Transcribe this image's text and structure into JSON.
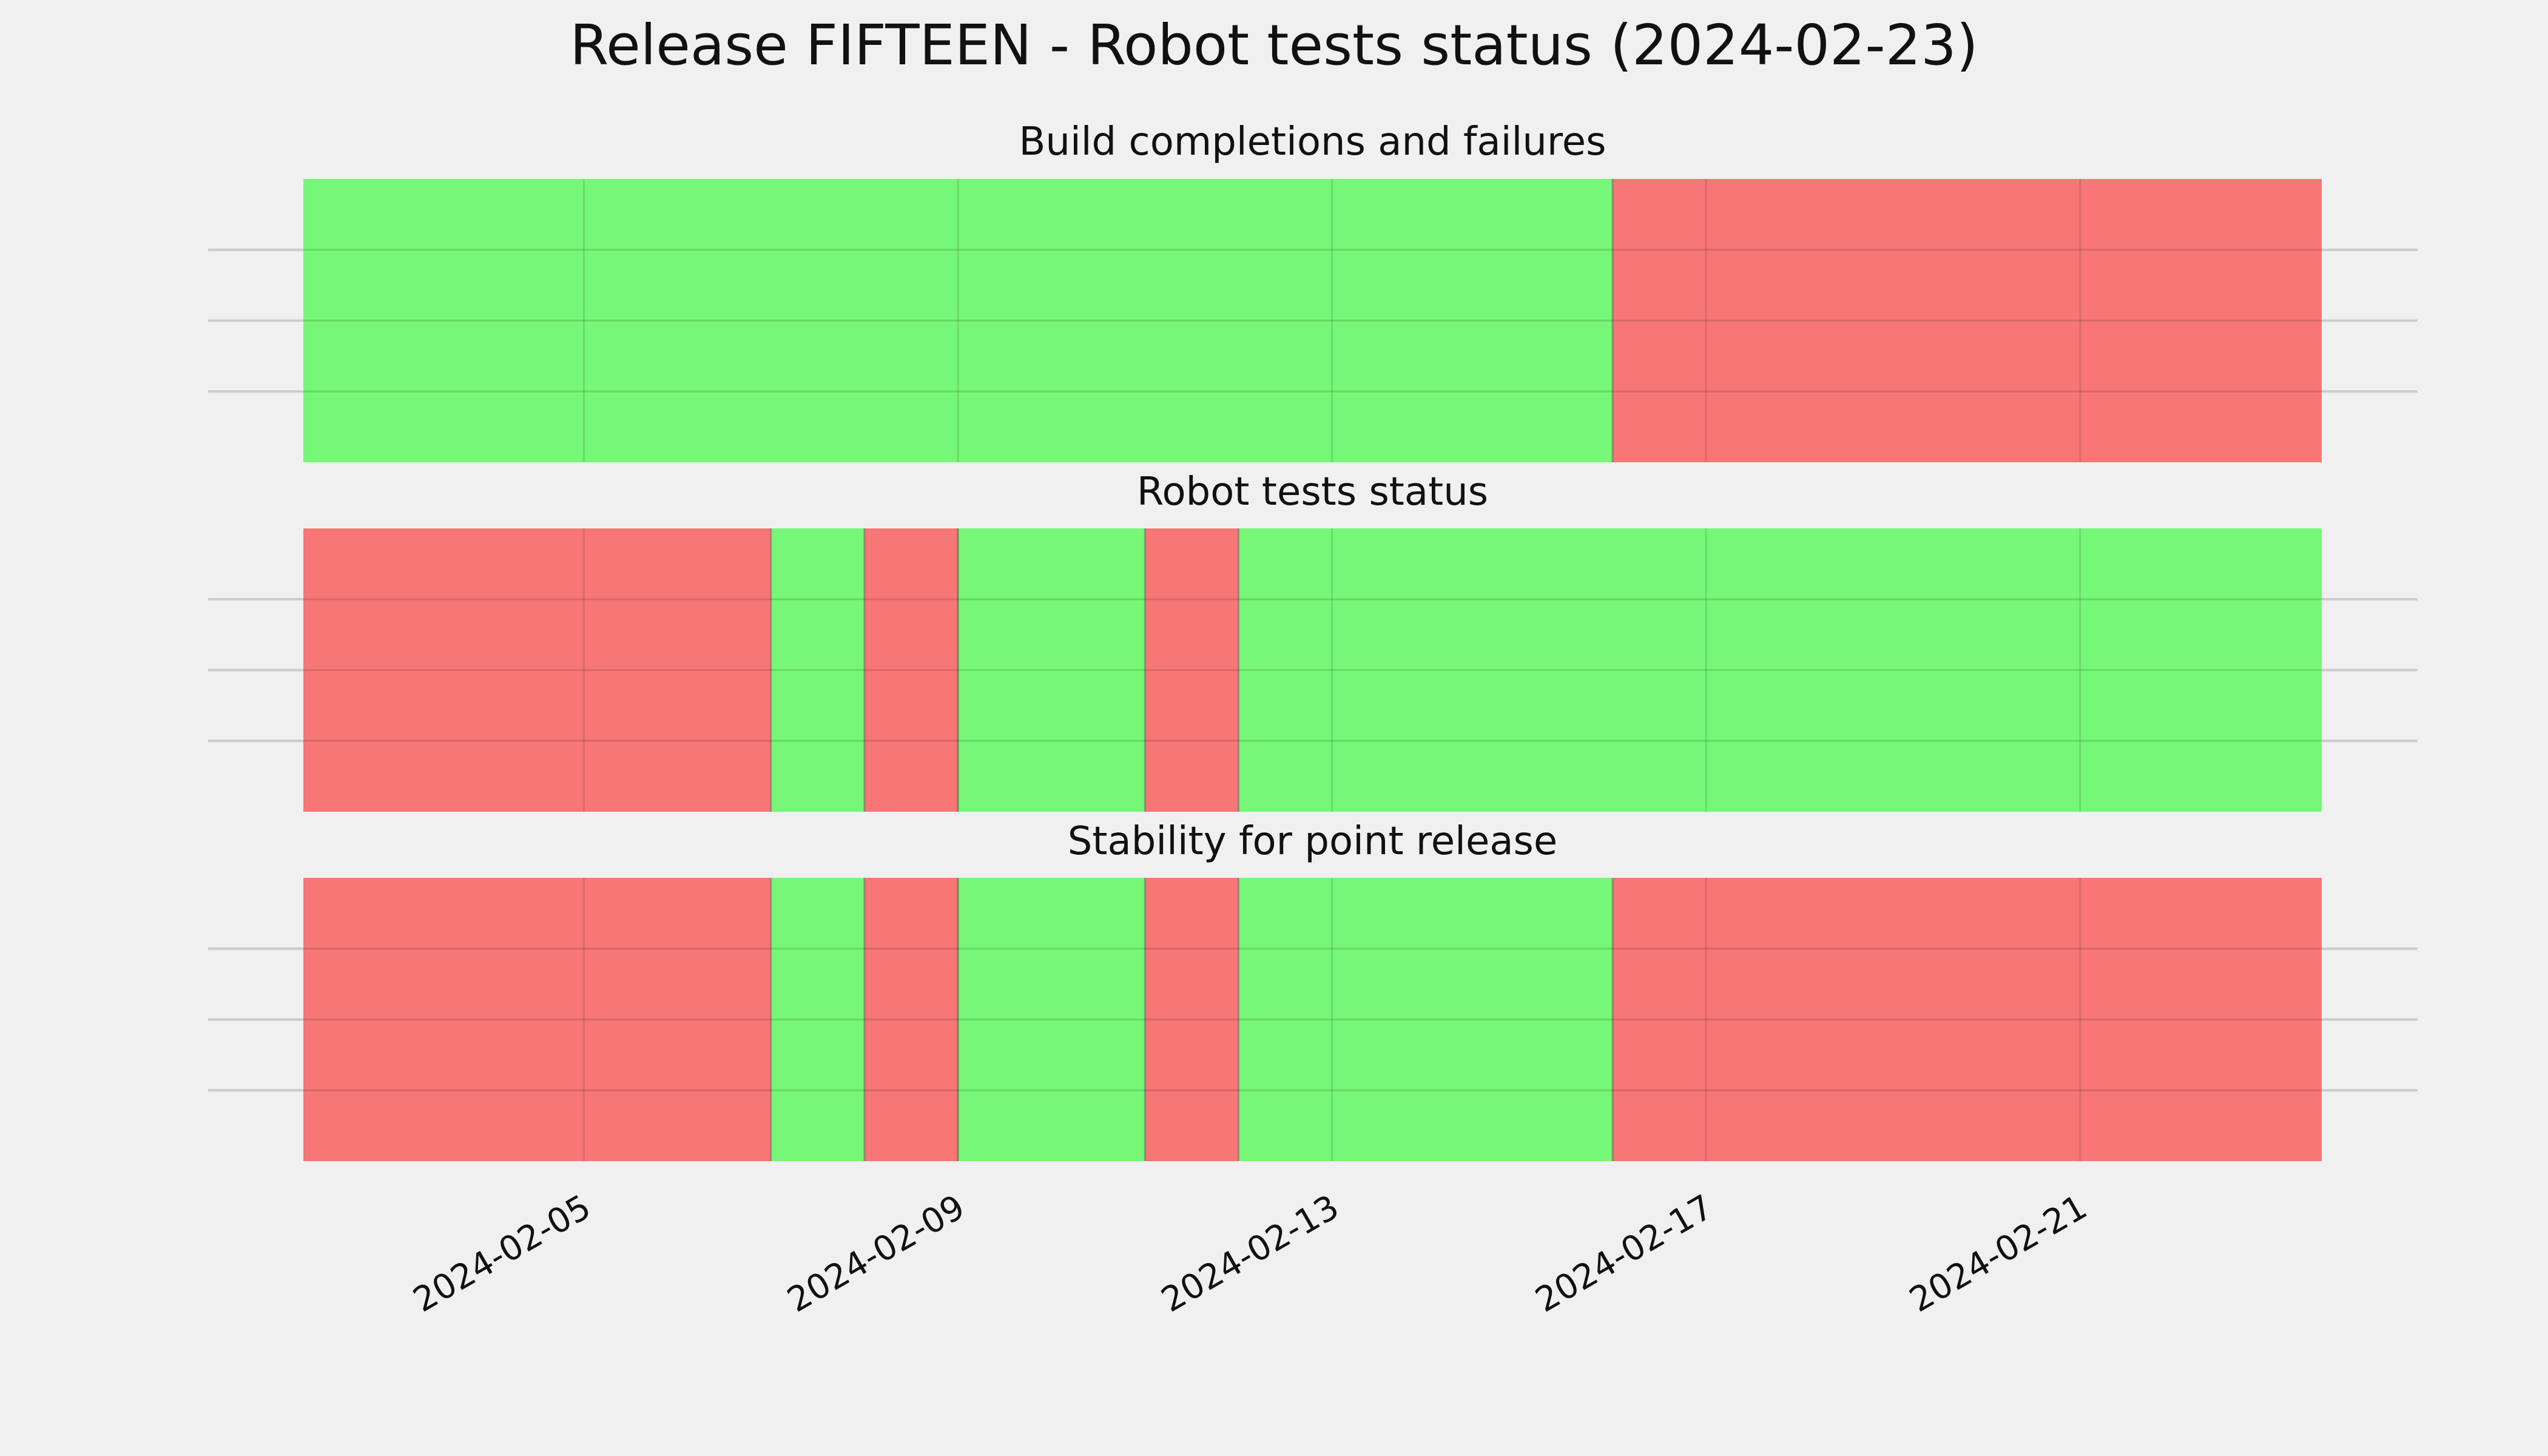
{
  "chart_data": {
    "type": "timeline",
    "title": "Release FIFTEEN - Robot tests status (2024-02-23)",
    "x_tick_labels": [
      "2024-02-05",
      "2024-02-09",
      "2024-02-13",
      "2024-02-17",
      "2024-02-21"
    ],
    "xlim": [
      "2024-02-02",
      "2024-02-23 14:00"
    ],
    "status_colors": {
      "pass": "#76f777",
      "fail": "#f77676"
    },
    "grid": true,
    "panels": [
      {
        "title": "Build completions and failures",
        "segments": [
          {
            "start": "2024-02-02",
            "end": "2024-02-16 00:00",
            "status": "pass"
          },
          {
            "start": "2024-02-16 00:00",
            "end": "2024-02-23 14:00",
            "status": "fail"
          }
        ]
      },
      {
        "title": "Robot tests status",
        "segments": [
          {
            "start": "2024-02-02",
            "end": "2024-02-07 00:00",
            "status": "fail"
          },
          {
            "start": "2024-02-07 00:00",
            "end": "2024-02-08 00:00",
            "status": "pass"
          },
          {
            "start": "2024-02-08 00:00",
            "end": "2024-02-09 00:00",
            "status": "fail"
          },
          {
            "start": "2024-02-09 00:00",
            "end": "2024-02-11 00:00",
            "status": "pass"
          },
          {
            "start": "2024-02-11 00:00",
            "end": "2024-02-12 00:00",
            "status": "fail"
          },
          {
            "start": "2024-02-12 00:00",
            "end": "2024-02-23 14:00",
            "status": "pass"
          }
        ]
      },
      {
        "title": "Stability for point release",
        "segments": [
          {
            "start": "2024-02-02",
            "end": "2024-02-07 00:00",
            "status": "fail"
          },
          {
            "start": "2024-02-07 00:00",
            "end": "2024-02-08 00:00",
            "status": "pass"
          },
          {
            "start": "2024-02-08 00:00",
            "end": "2024-02-09 00:00",
            "status": "fail"
          },
          {
            "start": "2024-02-09 00:00",
            "end": "2024-02-11 00:00",
            "status": "pass"
          },
          {
            "start": "2024-02-11 00:00",
            "end": "2024-02-12 00:00",
            "status": "fail"
          },
          {
            "start": "2024-02-12 00:00",
            "end": "2024-02-16 00:00",
            "status": "pass"
          },
          {
            "start": "2024-02-16 00:00",
            "end": "2024-02-23 14:00",
            "status": "fail"
          }
        ]
      }
    ]
  }
}
